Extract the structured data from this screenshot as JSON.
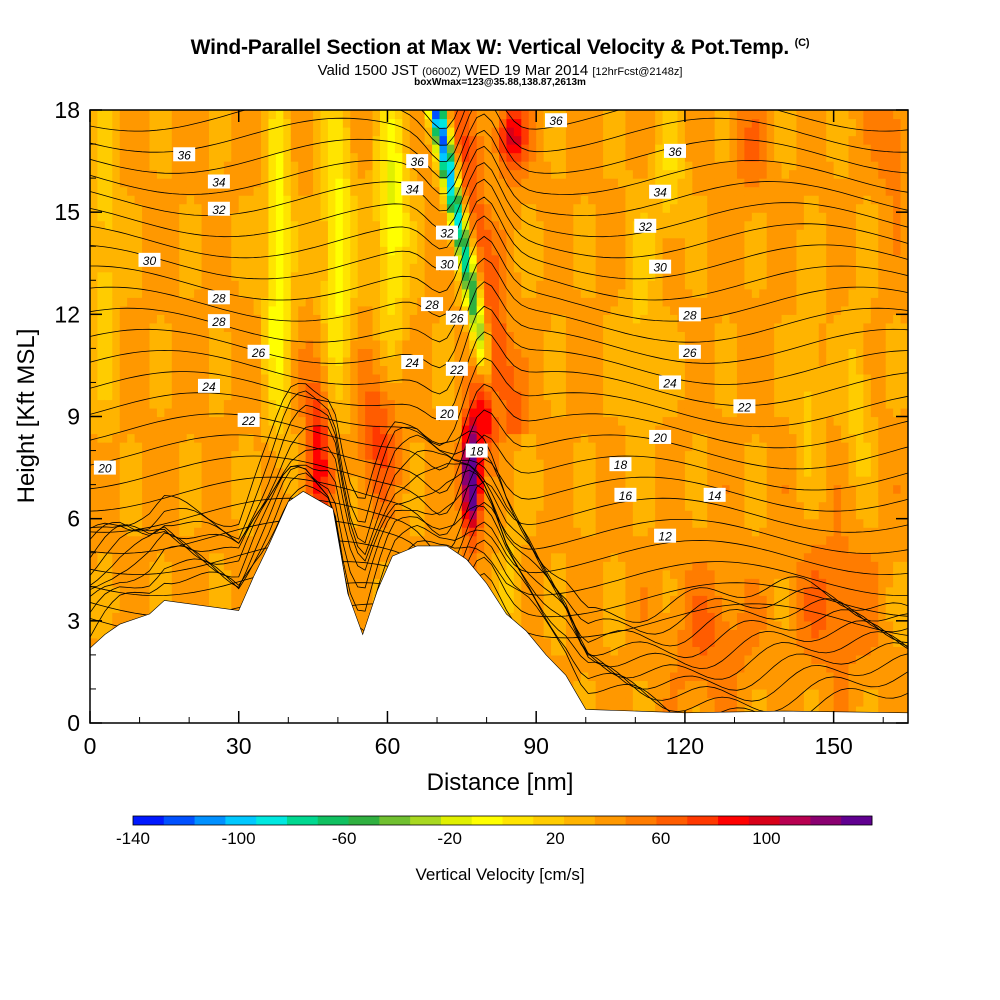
{
  "title": {
    "main": "Wind-Parallel Section at Max W: Vertical Velocity & Pot.Temp.",
    "mark": "(C)",
    "valid_prefix": "Valid 1500 JST",
    "valid_utc": "(0600Z)",
    "valid_date": "WED 19 Mar 2014",
    "forecast": "[12hrFcst@2148z]",
    "box_wmax": "boxWmax=123@35.88,138.87,2613m"
  },
  "chart_data": {
    "type": "heatmap",
    "xlabel": "Distance [nm]",
    "ylabel": "Height [Kft MSL]",
    "xlim": [
      0,
      165
    ],
    "ylim": [
      0,
      18
    ],
    "x_ticks": [
      0,
      30,
      60,
      90,
      120,
      150
    ],
    "y_ticks": [
      0,
      3,
      6,
      9,
      12,
      15,
      18
    ],
    "colorbar": {
      "label": "Vertical Velocity [cm/s]",
      "tick_values": [
        -140,
        -100,
        -60,
        -20,
        20,
        60,
        100
      ],
      "tick_labels": [
        "-140",
        "-100",
        "-60",
        "-20",
        "20",
        "60",
        "100"
      ],
      "range": [
        -140,
        140
      ],
      "step": 10,
      "colors": [
        "#0018ff",
        "#0050ff",
        "#0090ff",
        "#00c8ff",
        "#00e8e0",
        "#00d890",
        "#10c060",
        "#30b040",
        "#70c030",
        "#a8d820",
        "#e0f000",
        "#ffff00",
        "#ffe400",
        "#ffcc00",
        "#ffb400",
        "#ff9800",
        "#ff7c00",
        "#ff5c00",
        "#ff3800",
        "#ff0000",
        "#d80018",
        "#b80050",
        "#8a0070",
        "#600090"
      ]
    },
    "terrain": [
      [
        0,
        2.2
      ],
      [
        3,
        2.6
      ],
      [
        6,
        2.9
      ],
      [
        12,
        3.2
      ],
      [
        15,
        3.6
      ],
      [
        30,
        3.3
      ],
      [
        33,
        4.3
      ],
      [
        36,
        5.2
      ],
      [
        40,
        6.5
      ],
      [
        43,
        6.8
      ],
      [
        49,
        6.3
      ],
      [
        52,
        3.8
      ],
      [
        55,
        2.6
      ],
      [
        58,
        3.9
      ],
      [
        61,
        4.9
      ],
      [
        66,
        5.2
      ],
      [
        72,
        5.2
      ],
      [
        76,
        4.8
      ],
      [
        80,
        4.1
      ],
      [
        84,
        3.2
      ],
      [
        88,
        2.7
      ],
      [
        92,
        2.0
      ],
      [
        96,
        1.4
      ],
      [
        100,
        0.4
      ],
      [
        120,
        0.3
      ],
      [
        140,
        0.35
      ],
      [
        165,
        0.3
      ]
    ],
    "theta_labels": [
      {
        "x": 3,
        "y": 7.5,
        "text": "20"
      },
      {
        "x": 12,
        "y": 13.6,
        "text": "30"
      },
      {
        "x": 26,
        "y": 11.8,
        "text": "28"
      },
      {
        "x": 24,
        "y": 9.9,
        "text": "24"
      },
      {
        "x": 32,
        "y": 8.9,
        "text": "22"
      },
      {
        "x": 19,
        "y": 16.7,
        "text": "36"
      },
      {
        "x": 26,
        "y": 15.9,
        "text": "34"
      },
      {
        "x": 26,
        "y": 15.1,
        "text": "32"
      },
      {
        "x": 26,
        "y": 12.5,
        "text": "28"
      },
      {
        "x": 34,
        "y": 10.9,
        "text": "26"
      },
      {
        "x": 66,
        "y": 16.5,
        "text": "36"
      },
      {
        "x": 65,
        "y": 15.7,
        "text": "34"
      },
      {
        "x": 72,
        "y": 14.4,
        "text": "32"
      },
      {
        "x": 72,
        "y": 13.5,
        "text": "30"
      },
      {
        "x": 69,
        "y": 12.3,
        "text": "28"
      },
      {
        "x": 74,
        "y": 11.9,
        "text": "26"
      },
      {
        "x": 65,
        "y": 10.6,
        "text": "24"
      },
      {
        "x": 74,
        "y": 10.4,
        "text": "22"
      },
      {
        "x": 72,
        "y": 9.1,
        "text": "20"
      },
      {
        "x": 78,
        "y": 8.0,
        "text": "18"
      },
      {
        "x": 94,
        "y": 17.7,
        "text": "36"
      },
      {
        "x": 118,
        "y": 16.8,
        "text": "36"
      },
      {
        "x": 115,
        "y": 15.6,
        "text": "34"
      },
      {
        "x": 112,
        "y": 14.6,
        "text": "32"
      },
      {
        "x": 115,
        "y": 13.4,
        "text": "30"
      },
      {
        "x": 121,
        "y": 12.0,
        "text": "28"
      },
      {
        "x": 121,
        "y": 10.9,
        "text": "26"
      },
      {
        "x": 117,
        "y": 10.0,
        "text": "24"
      },
      {
        "x": 132,
        "y": 9.3,
        "text": "22"
      },
      {
        "x": 115,
        "y": 8.4,
        "text": "20"
      },
      {
        "x": 107,
        "y": 7.6,
        "text": "18"
      },
      {
        "x": 108,
        "y": 6.7,
        "text": "16"
      },
      {
        "x": 126,
        "y": 6.7,
        "text": "14"
      },
      {
        "x": 116,
        "y": 5.5,
        "text": "12"
      }
    ],
    "features": {
      "updraft_max": {
        "x": 77,
        "y": 7.3,
        "value": 123
      },
      "downdraft_axis": {
        "x_bottom": 81,
        "x_top": 70,
        "y_bottom": 9.5,
        "y_top": 18
      }
    }
  }
}
